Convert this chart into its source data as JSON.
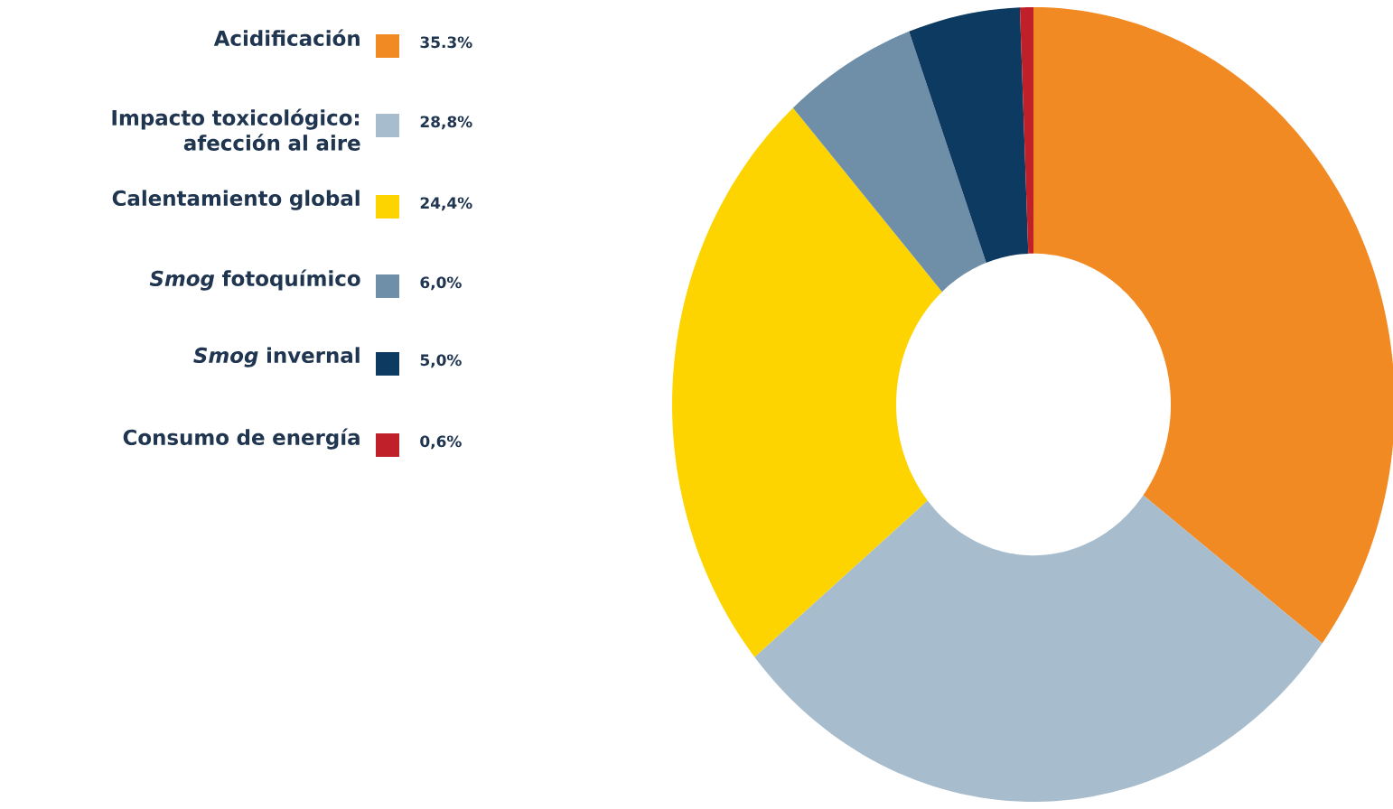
{
  "chart_data": {
    "type": "donut",
    "categories": [
      "Acidificación",
      "Impacto toxicológico: afección al aire",
      "Calentamiento global",
      "*Smog* fotoquímico",
      "*Smog* invernal",
      "Consumo de energía"
    ],
    "values": [
      35.3,
      28.8,
      24.4,
      6.0,
      5.0,
      0.6
    ],
    "value_labels": [
      "35.3%",
      "28,8%",
      "24,4%",
      "6,0%",
      "5,0%",
      "0,6%"
    ],
    "colors": [
      "#f28a24",
      "#a7bccc",
      "#fdd300",
      "#6f8fa8",
      "#0c3a60",
      "#c0202a"
    ],
    "legend": "top left"
  }
}
